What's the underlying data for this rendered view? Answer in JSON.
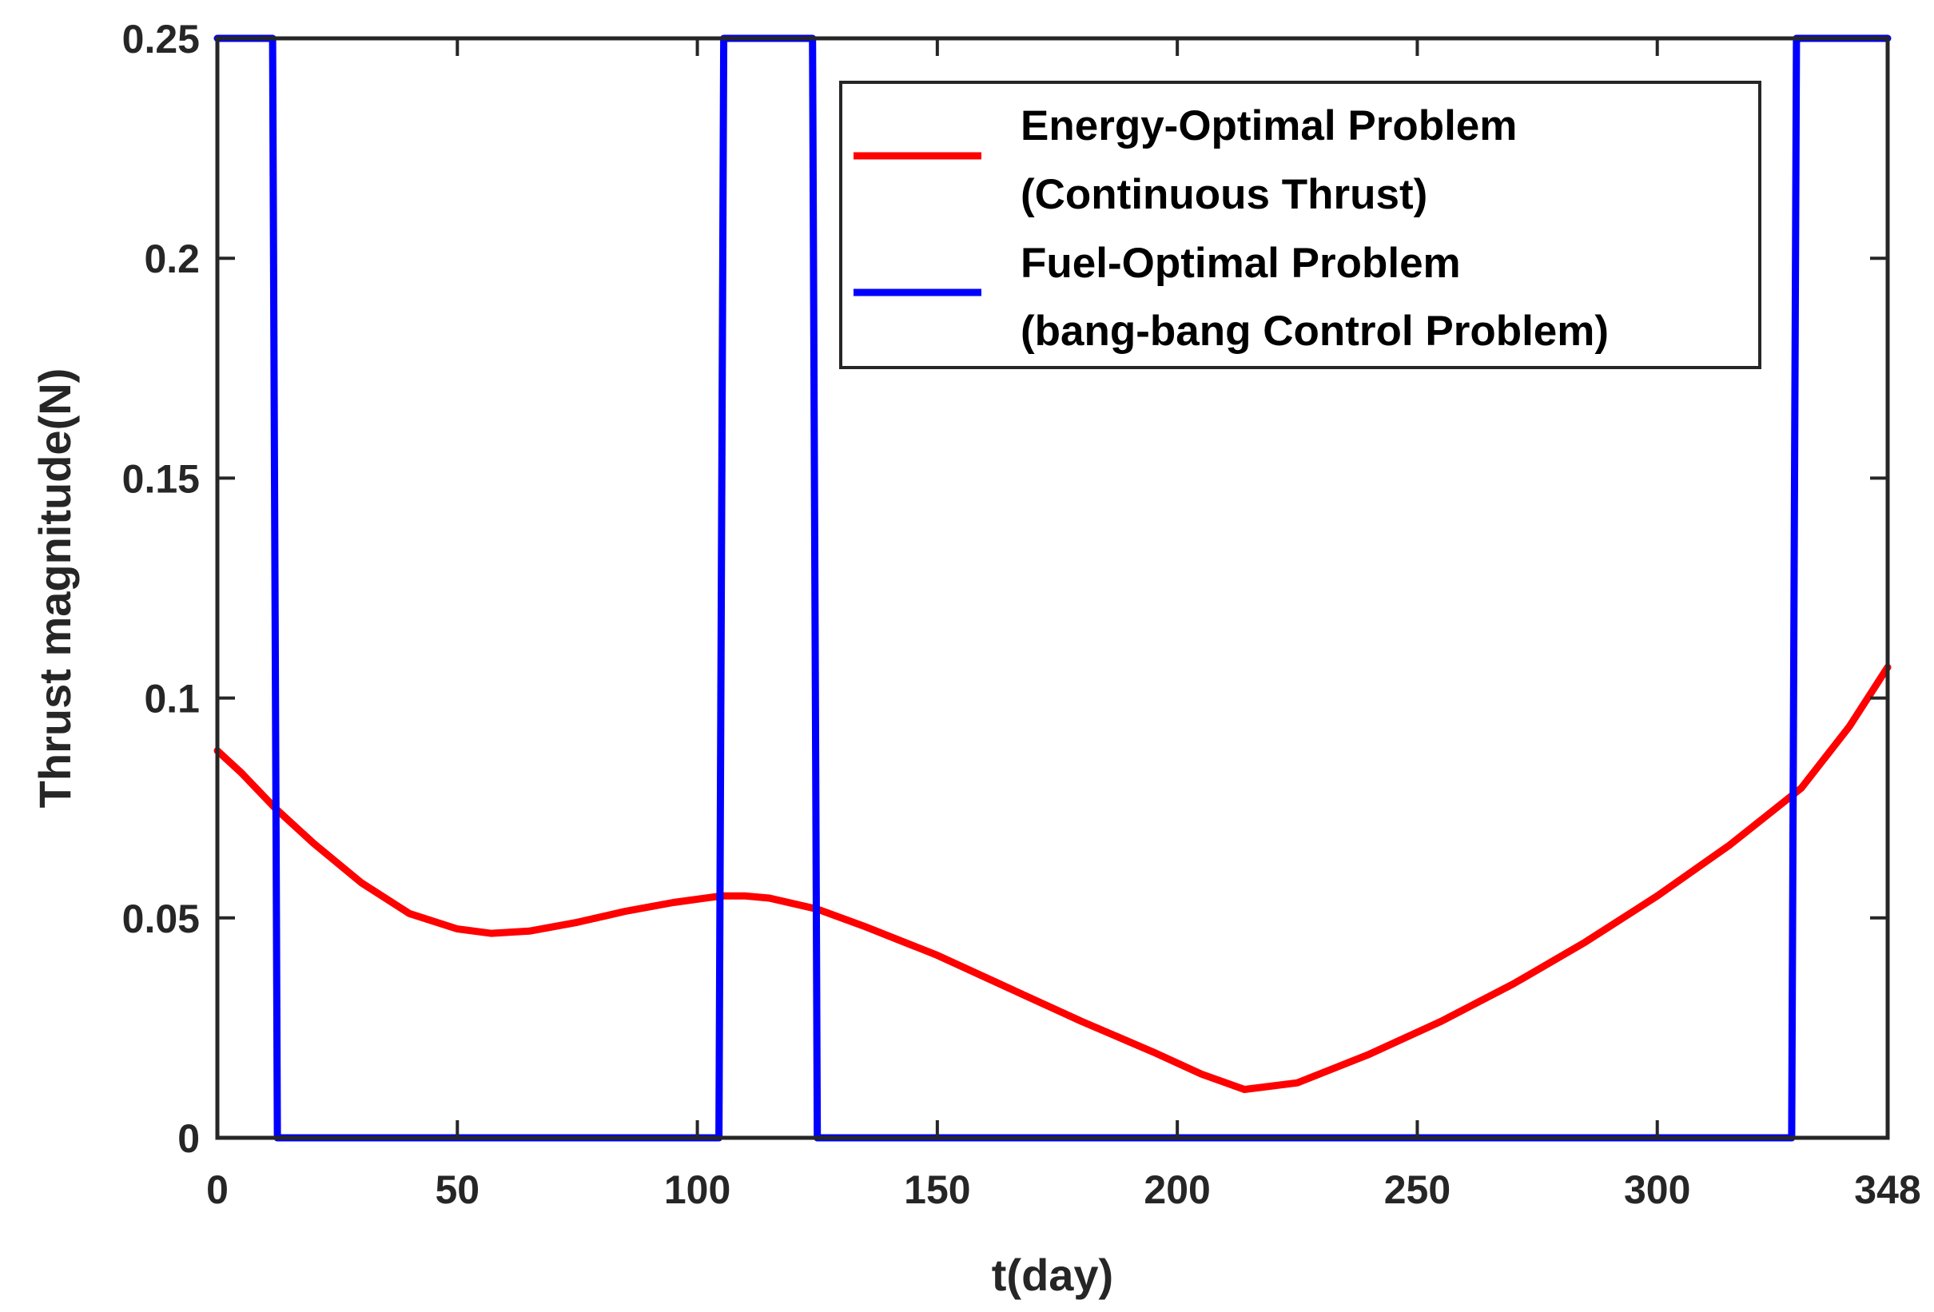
{
  "chart_data": {
    "type": "line",
    "title": "",
    "xlabel": "t(day)",
    "ylabel": "Thrust magnitude(N)",
    "xlim": [
      0,
      348
    ],
    "ylim": [
      0,
      0.25
    ],
    "x_ticks": [
      0,
      50,
      100,
      150,
      200,
      250,
      300,
      348
    ],
    "x_tick_labels": [
      "0",
      "50",
      "100",
      "150",
      "200",
      "250",
      "300",
      "348"
    ],
    "y_ticks": [
      0,
      0.05,
      0.1,
      0.15,
      0.2,
      0.25
    ],
    "y_tick_labels": [
      "0",
      "0.05",
      "0.1",
      "0.15",
      "0.2",
      "0.25"
    ],
    "grid": false,
    "legend_position": "top-right",
    "legend": [
      {
        "line1": "Energy-Optimal Problem",
        "line2": "(Continuous Thrust)",
        "color": "#ff0000"
      },
      {
        "line1": "Fuel-Optimal Problem",
        "line2": "(bang-bang Control Problem)",
        "color": "#0000ff"
      }
    ],
    "series": [
      {
        "name": "Energy-Optimal Problem (Continuous Thrust)",
        "color": "#ff0000",
        "x": [
          0,
          5,
          12,
          20,
          30,
          40,
          50,
          57,
          65,
          75,
          85,
          95,
          105,
          110,
          115,
          125,
          135,
          150,
          165,
          180,
          195,
          205,
          214,
          225,
          240,
          255,
          270,
          285,
          300,
          315,
          330,
          340,
          348
        ],
        "y": [
          0.088,
          0.083,
          0.075,
          0.067,
          0.058,
          0.051,
          0.0475,
          0.0465,
          0.047,
          0.049,
          0.0515,
          0.0535,
          0.055,
          0.055,
          0.0545,
          0.052,
          0.048,
          0.0415,
          0.034,
          0.0265,
          0.0195,
          0.0145,
          0.011,
          0.0125,
          0.019,
          0.0265,
          0.035,
          0.0445,
          0.055,
          0.0665,
          0.0795,
          0.0935,
          0.107
        ]
      },
      {
        "name": "Fuel-Optimal Problem (bang-bang Control Problem)",
        "color": "#0000ff",
        "x": [
          0,
          11.5,
          12.5,
          104.5,
          105.5,
          124,
          125,
          328,
          329,
          348
        ],
        "y": [
          0.25,
          0.25,
          0,
          0,
          0.25,
          0.25,
          0,
          0,
          0.25,
          0.25
        ]
      }
    ]
  }
}
